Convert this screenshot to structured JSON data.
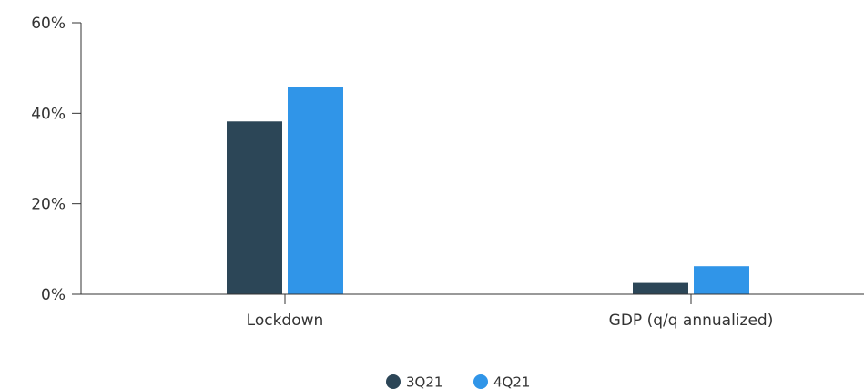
{
  "chart_data": {
    "type": "bar",
    "title": "",
    "xlabel": "",
    "ylabel": "",
    "categories": [
      "Lockdown",
      "GDP (q/q annualized)"
    ],
    "series": [
      {
        "name": "3Q21",
        "values": [
          38.2,
          2.5
        ],
        "color": "#2c4657"
      },
      {
        "name": "4Q21",
        "values": [
          45.8,
          6.2
        ],
        "color": "#3095e8"
      }
    ],
    "ylim": [
      0,
      60
    ],
    "yticks": [
      0,
      20,
      40,
      60
    ],
    "ytick_labels": [
      "0%",
      "20%",
      "40%",
      "60%"
    ],
    "grid": false,
    "legend_position": "bottom-center"
  }
}
